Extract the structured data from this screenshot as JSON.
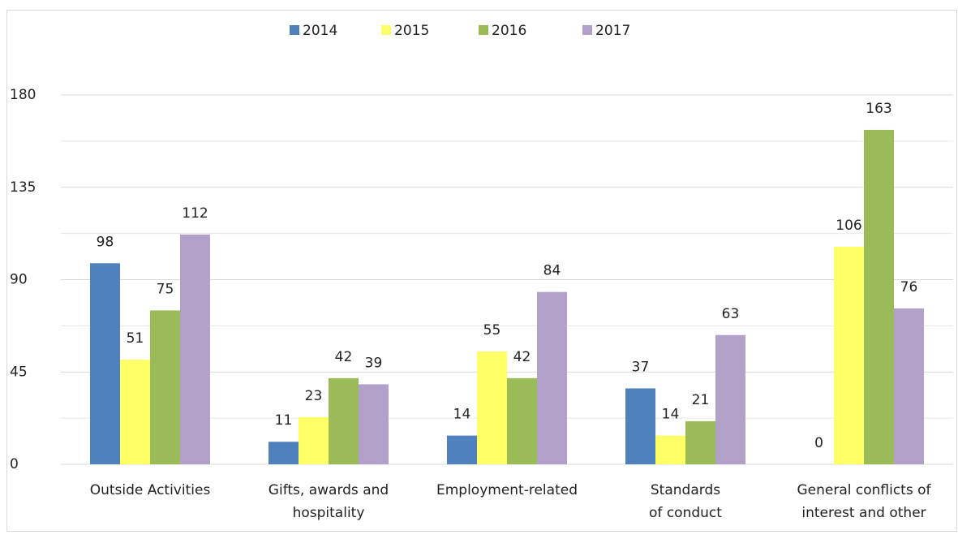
{
  "chart_data": {
    "type": "bar",
    "categories": [
      "Outside Activities",
      "Gifts, awards and\nhospitality",
      "Employment-related",
      "Standards\nof conduct",
      "General conflicts of\ninterest and other"
    ],
    "series": [
      {
        "name": "2014",
        "color": "#4f81bd",
        "values": [
          98,
          11,
          14,
          37,
          0
        ]
      },
      {
        "name": "2015",
        "color": "#ffff66",
        "values": [
          51,
          23,
          55,
          14,
          106
        ]
      },
      {
        "name": "2016",
        "color": "#9bbb59",
        "values": [
          75,
          42,
          42,
          21,
          163
        ]
      },
      {
        "name": "2017",
        "color": "#b1a0c7",
        "values": [
          112,
          39,
          84,
          63,
          76
        ]
      }
    ],
    "ylim": [
      0,
      180
    ],
    "yticks": [
      0,
      45,
      90,
      135,
      180
    ],
    "minor_yticks": [
      22.5,
      67.5,
      112.5,
      157.5
    ],
    "grid": true,
    "legend": "top"
  }
}
